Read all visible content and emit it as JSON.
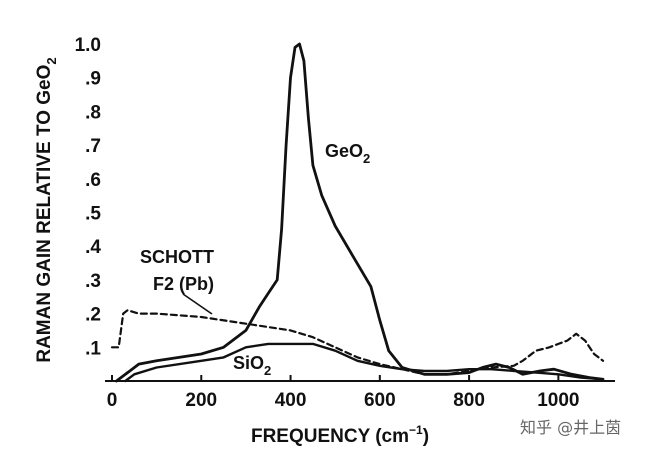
{
  "chart_data": {
    "type": "line",
    "title": "",
    "xlabel": {
      "main": "FREQUENCY (cm",
      "sup": "−1",
      "end": ")"
    },
    "ylabel": {
      "main": "RAMAN GAIN RELATIVE TO GeO",
      "sub": "2"
    },
    "xlim": [
      0,
      1100
    ],
    "ylim": [
      0,
      1.0
    ],
    "x_ticks": [
      0,
      200,
      400,
      600,
      800,
      1000
    ],
    "y_ticks": [
      {
        "value": 0.1,
        "label": ".1"
      },
      {
        "value": 0.2,
        "label": ".2"
      },
      {
        "value": 0.3,
        "label": ".3"
      },
      {
        "value": 0.4,
        "label": ".4"
      },
      {
        "value": 0.5,
        "label": ".5"
      },
      {
        "value": 0.6,
        "label": ".6"
      },
      {
        "value": 0.7,
        "label": ".7"
      },
      {
        "value": 0.8,
        "label": ".8"
      },
      {
        "value": 0.9,
        "label": ".9"
      },
      {
        "value": 1.0,
        "label": "1.0"
      }
    ],
    "grid": false,
    "legend": "none",
    "annotations": {
      "geo2": {
        "main": "GeO",
        "sub": "2"
      },
      "schott_line1": "SCHOTT",
      "schott_line2": "F2 (Pb)",
      "sio2": {
        "main": "SiO",
        "sub": "2"
      }
    },
    "series": [
      {
        "style": "solid",
        "points": [
          [
            10,
            0.0
          ],
          [
            30,
            0.02
          ],
          [
            60,
            0.05
          ],
          [
            100,
            0.06
          ],
          [
            150,
            0.07
          ],
          [
            200,
            0.08
          ],
          [
            250,
            0.1
          ],
          [
            300,
            0.15
          ],
          [
            330,
            0.22
          ],
          [
            350,
            0.26
          ],
          [
            370,
            0.3
          ],
          [
            380,
            0.45
          ],
          [
            390,
            0.7
          ],
          [
            400,
            0.9
          ],
          [
            410,
            0.99
          ],
          [
            420,
            1.0
          ],
          [
            430,
            0.95
          ],
          [
            440,
            0.78
          ],
          [
            450,
            0.64
          ],
          [
            470,
            0.55
          ],
          [
            500,
            0.46
          ],
          [
            540,
            0.37
          ],
          [
            580,
            0.28
          ],
          [
            600,
            0.18
          ],
          [
            620,
            0.09
          ],
          [
            650,
            0.04
          ],
          [
            700,
            0.02
          ],
          [
            750,
            0.02
          ],
          [
            800,
            0.025
          ],
          [
            830,
            0.04
          ],
          [
            860,
            0.05
          ],
          [
            890,
            0.04
          ],
          [
            920,
            0.02
          ],
          [
            960,
            0.03
          ],
          [
            990,
            0.035
          ],
          [
            1030,
            0.02
          ],
          [
            1070,
            0.01
          ],
          [
            1100,
            0.005
          ]
        ]
      },
      {
        "style": "dashed",
        "points": [
          [
            0,
            0.1
          ],
          [
            15,
            0.1
          ],
          [
            25,
            0.2
          ],
          [
            35,
            0.21
          ],
          [
            60,
            0.2
          ],
          [
            100,
            0.2
          ],
          [
            200,
            0.19
          ],
          [
            300,
            0.17
          ],
          [
            400,
            0.15
          ],
          [
            450,
            0.13
          ],
          [
            500,
            0.1
          ],
          [
            550,
            0.07
          ],
          [
            600,
            0.05
          ],
          [
            700,
            0.02
          ],
          [
            750,
            0.02
          ],
          [
            800,
            0.03
          ],
          [
            850,
            0.04
          ],
          [
            900,
            0.045
          ],
          [
            920,
            0.06
          ],
          [
            950,
            0.09
          ],
          [
            980,
            0.1
          ],
          [
            1000,
            0.11
          ],
          [
            1020,
            0.12
          ],
          [
            1040,
            0.14
          ],
          [
            1060,
            0.12
          ],
          [
            1080,
            0.08
          ],
          [
            1100,
            0.06
          ]
        ]
      },
      {
        "style": "solid-thin",
        "points": [
          [
            30,
            0.0
          ],
          [
            50,
            0.02
          ],
          [
            100,
            0.04
          ],
          [
            200,
            0.06
          ],
          [
            250,
            0.07
          ],
          [
            300,
            0.1
          ],
          [
            350,
            0.11
          ],
          [
            400,
            0.11
          ],
          [
            450,
            0.11
          ],
          [
            500,
            0.09
          ],
          [
            550,
            0.06
          ],
          [
            600,
            0.045
          ],
          [
            650,
            0.035
          ],
          [
            700,
            0.03
          ],
          [
            750,
            0.03
          ],
          [
            800,
            0.035
          ],
          [
            850,
            0.035
          ],
          [
            900,
            0.03
          ],
          [
            950,
            0.025
          ],
          [
            1000,
            0.02
          ],
          [
            1050,
            0.01
          ],
          [
            1100,
            0.005
          ]
        ]
      }
    ]
  },
  "watermark": "知乎 @井上茵"
}
